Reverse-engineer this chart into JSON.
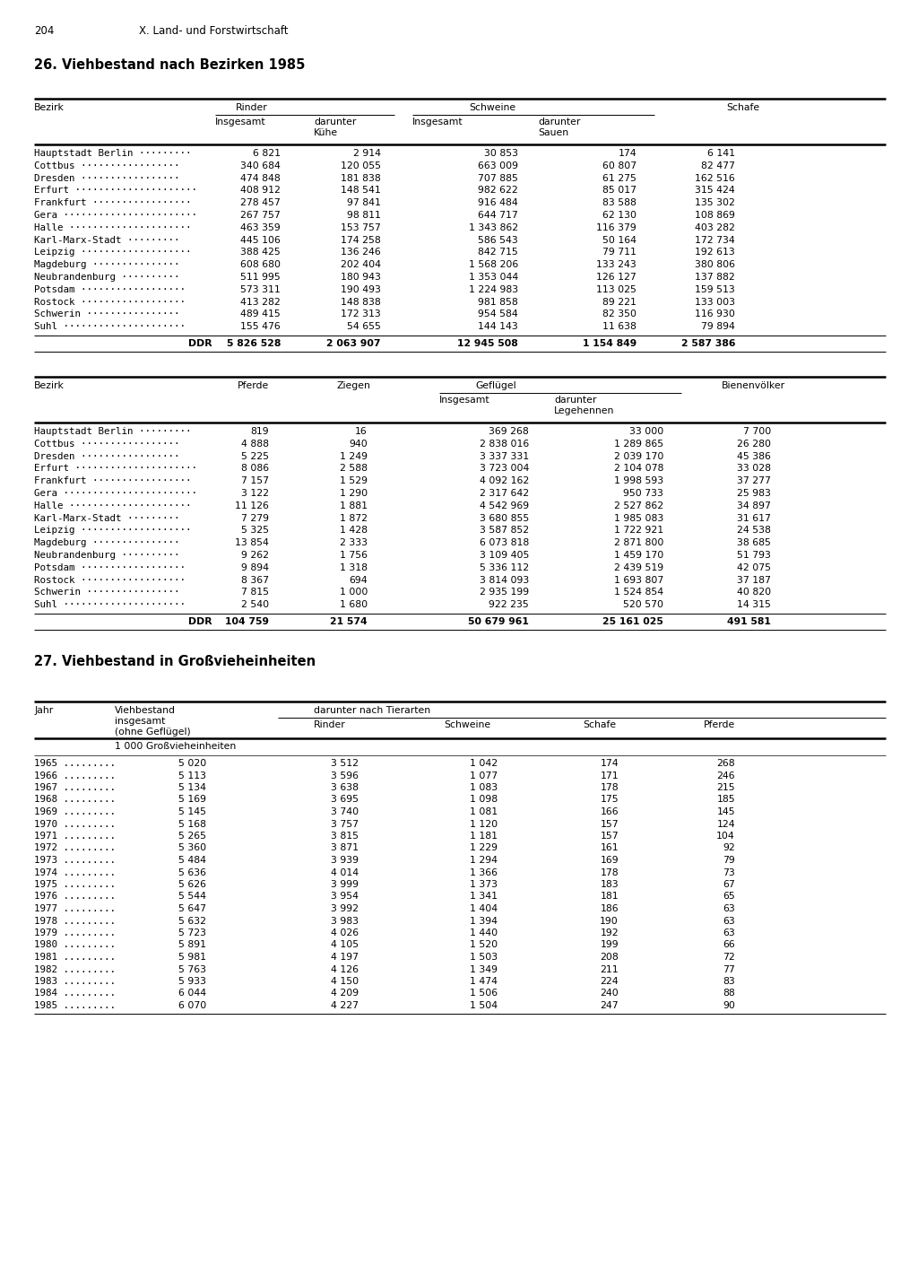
{
  "page_number": "204",
  "chapter": "X. Land- und Forstwirtschaft",
  "title1": "26. Viehbestand nach Bezirken 1985",
  "title2": "27. Viehbestand in Großvieheinheiten",
  "table1": {
    "rows": [
      [
        "Hauptstadt Berlin",
        "6 821",
        "2 914",
        "30 853",
        "174",
        "6 141"
      ],
      [
        "Cottbus",
        "340 684",
        "120 055",
        "663 009",
        "60 807",
        "82 477"
      ],
      [
        "Dresden",
        "474 848",
        "181 838",
        "707 885",
        "61 275",
        "162 516"
      ],
      [
        "Erfurt",
        "408 912",
        "148 541",
        "982 622",
        "85 017",
        "315 424"
      ],
      [
        "Frankfurt",
        "278 457",
        "97 841",
        "916 484",
        "83 588",
        "135 302"
      ],
      [
        "Gera",
        "267 757",
        "98 811",
        "644 717",
        "62 130",
        "108 869"
      ],
      [
        "Halle",
        "463 359",
        "153 757",
        "1 343 862",
        "116 379",
        "403 282"
      ],
      [
        "Karl-Marx-Stadt",
        "445 106",
        "174 258",
        "586 543",
        "50 164",
        "172 734"
      ],
      [
        "Leipzig",
        "388 425",
        "136 246",
        "842 715",
        "79 711",
        "192 613"
      ],
      [
        "Magdeburg",
        "608 680",
        "202 404",
        "1 568 206",
        "133 243",
        "380 806"
      ],
      [
        "Neubrandenburg",
        "511 995",
        "180 943",
        "1 353 044",
        "126 127",
        "137 882"
      ],
      [
        "Potsdam",
        "573 311",
        "190 493",
        "1 224 983",
        "113 025",
        "159 513"
      ],
      [
        "Rostock",
        "413 282",
        "148 838",
        "981 858",
        "89 221",
        "133 003"
      ],
      [
        "Schwerin",
        "489 415",
        "172 313",
        "954 584",
        "82 350",
        "116 930"
      ],
      [
        "Suhl",
        "155 476",
        "54 655",
        "144 143",
        "11 638",
        "79 894"
      ]
    ],
    "ddr_row": [
      "DDR",
      "5 826 528",
      "2 063 907",
      "12 945 508",
      "1 154 849",
      "2 587 386"
    ]
  },
  "table2": {
    "rows": [
      [
        "Hauptstadt Berlin",
        "819",
        "16",
        "369 268",
        "33 000",
        "7 700"
      ],
      [
        "Cottbus",
        "4 888",
        "940",
        "2 838 016",
        "1 289 865",
        "26 280"
      ],
      [
        "Dresden",
        "5 225",
        "1 249",
        "3 337 331",
        "2 039 170",
        "45 386"
      ],
      [
        "Erfurt",
        "8 086",
        "2 588",
        "3 723 004",
        "2 104 078",
        "33 028"
      ],
      [
        "Frankfurt",
        "7 157",
        "1 529",
        "4 092 162",
        "1 998 593",
        "37 277"
      ],
      [
        "Gera",
        "3 122",
        "1 290",
        "2 317 642",
        "950 733",
        "25 983"
      ],
      [
        "Halle",
        "11 126",
        "1 881",
        "4 542 969",
        "2 527 862",
        "34 897"
      ],
      [
        "Karl-Marx-Stadt",
        "7 279",
        "1 872",
        "3 680 855",
        "1 985 083",
        "31 617"
      ],
      [
        "Leipzig",
        "5 325",
        "1 428",
        "3 587 852",
        "1 722 921",
        "24 538"
      ],
      [
        "Magdeburg",
        "13 854",
        "2 333",
        "6 073 818",
        "2 871 800",
        "38 685"
      ],
      [
        "Neubrandenburg",
        "9 262",
        "1 756",
        "3 109 405",
        "1 459 170",
        "51 793"
      ],
      [
        "Potsdam",
        "9 894",
        "1 318",
        "5 336 112",
        "2 439 519",
        "42 075"
      ],
      [
        "Rostock",
        "8 367",
        "694",
        "3 814 093",
        "1 693 807",
        "37 187"
      ],
      [
        "Schwerin",
        "7 815",
        "1 000",
        "2 935 199",
        "1 524 854",
        "40 820"
      ],
      [
        "Suhl",
        "2 540",
        "1 680",
        "922 235",
        "520 570",
        "14 315"
      ]
    ],
    "ddr_row": [
      "DDR",
      "104 759",
      "21 574",
      "50 679 961",
      "25 161 025",
      "491 581"
    ]
  },
  "table3": {
    "rows": [
      [
        "1965",
        "5 020",
        "3 512",
        "1 042",
        "174",
        "268"
      ],
      [
        "1966",
        "5 113",
        "3 596",
        "1 077",
        "171",
        "246"
      ],
      [
        "1967",
        "5 134",
        "3 638",
        "1 083",
        "178",
        "215"
      ],
      [
        "1968",
        "5 169",
        "3 695",
        "1 098",
        "175",
        "185"
      ],
      [
        "1969",
        "5 145",
        "3 740",
        "1 081",
        "166",
        "145"
      ],
      [
        "1970",
        "5 168",
        "3 757",
        "1 120",
        "157",
        "124"
      ],
      [
        "1971",
        "5 265",
        "3 815",
        "1 181",
        "157",
        "104"
      ],
      [
        "1972",
        "5 360",
        "3 871",
        "1 229",
        "161",
        "92"
      ],
      [
        "1973",
        "5 484",
        "3 939",
        "1 294",
        "169",
        "79"
      ],
      [
        "1974",
        "5 636",
        "4 014",
        "1 366",
        "178",
        "73"
      ],
      [
        "1975",
        "5 626",
        "3 999",
        "1 373",
        "183",
        "67"
      ],
      [
        "1976",
        "5 544",
        "3 954",
        "1 341",
        "181",
        "65"
      ],
      [
        "1977",
        "5 647",
        "3 992",
        "1 404",
        "186",
        "63"
      ],
      [
        "1978",
        "5 632",
        "3 983",
        "1 394",
        "190",
        "63"
      ],
      [
        "1979",
        "5 723",
        "4 026",
        "1 440",
        "192",
        "63"
      ],
      [
        "1980",
        "5 891",
        "4 105",
        "1 520",
        "199",
        "66"
      ],
      [
        "1981",
        "5 981",
        "4 197",
        "1 503",
        "208",
        "72"
      ],
      [
        "1982",
        "5 763",
        "4 126",
        "1 349",
        "211",
        "77"
      ],
      [
        "1983",
        "5 933",
        "4 150",
        "1 474",
        "224",
        "83"
      ],
      [
        "1984",
        "6 044",
        "4 209",
        "1 506",
        "240",
        "88"
      ],
      [
        "1985",
        "6 070",
        "4 227",
        "1 504",
        "247",
        "90"
      ]
    ]
  },
  "dot_patterns": {
    "Hauptstadt Berlin": " ·········",
    "Cottbus": " ·················",
    "Dresden": " ·················",
    "Erfurt": " ·····················",
    "Frankfurt": " ·················",
    "Gera": " ·······················",
    "Halle": " ·····················",
    "Karl-Marx-Stadt": " ·········",
    "Leipzig": " ···················",
    "Magdeburg": " ···············",
    "Neubrandenburg": " ··········",
    "Potsdam": " ··················",
    "Rostock": " ··················",
    "Schwerin": " ················",
    "Suhl": " ·····················"
  }
}
